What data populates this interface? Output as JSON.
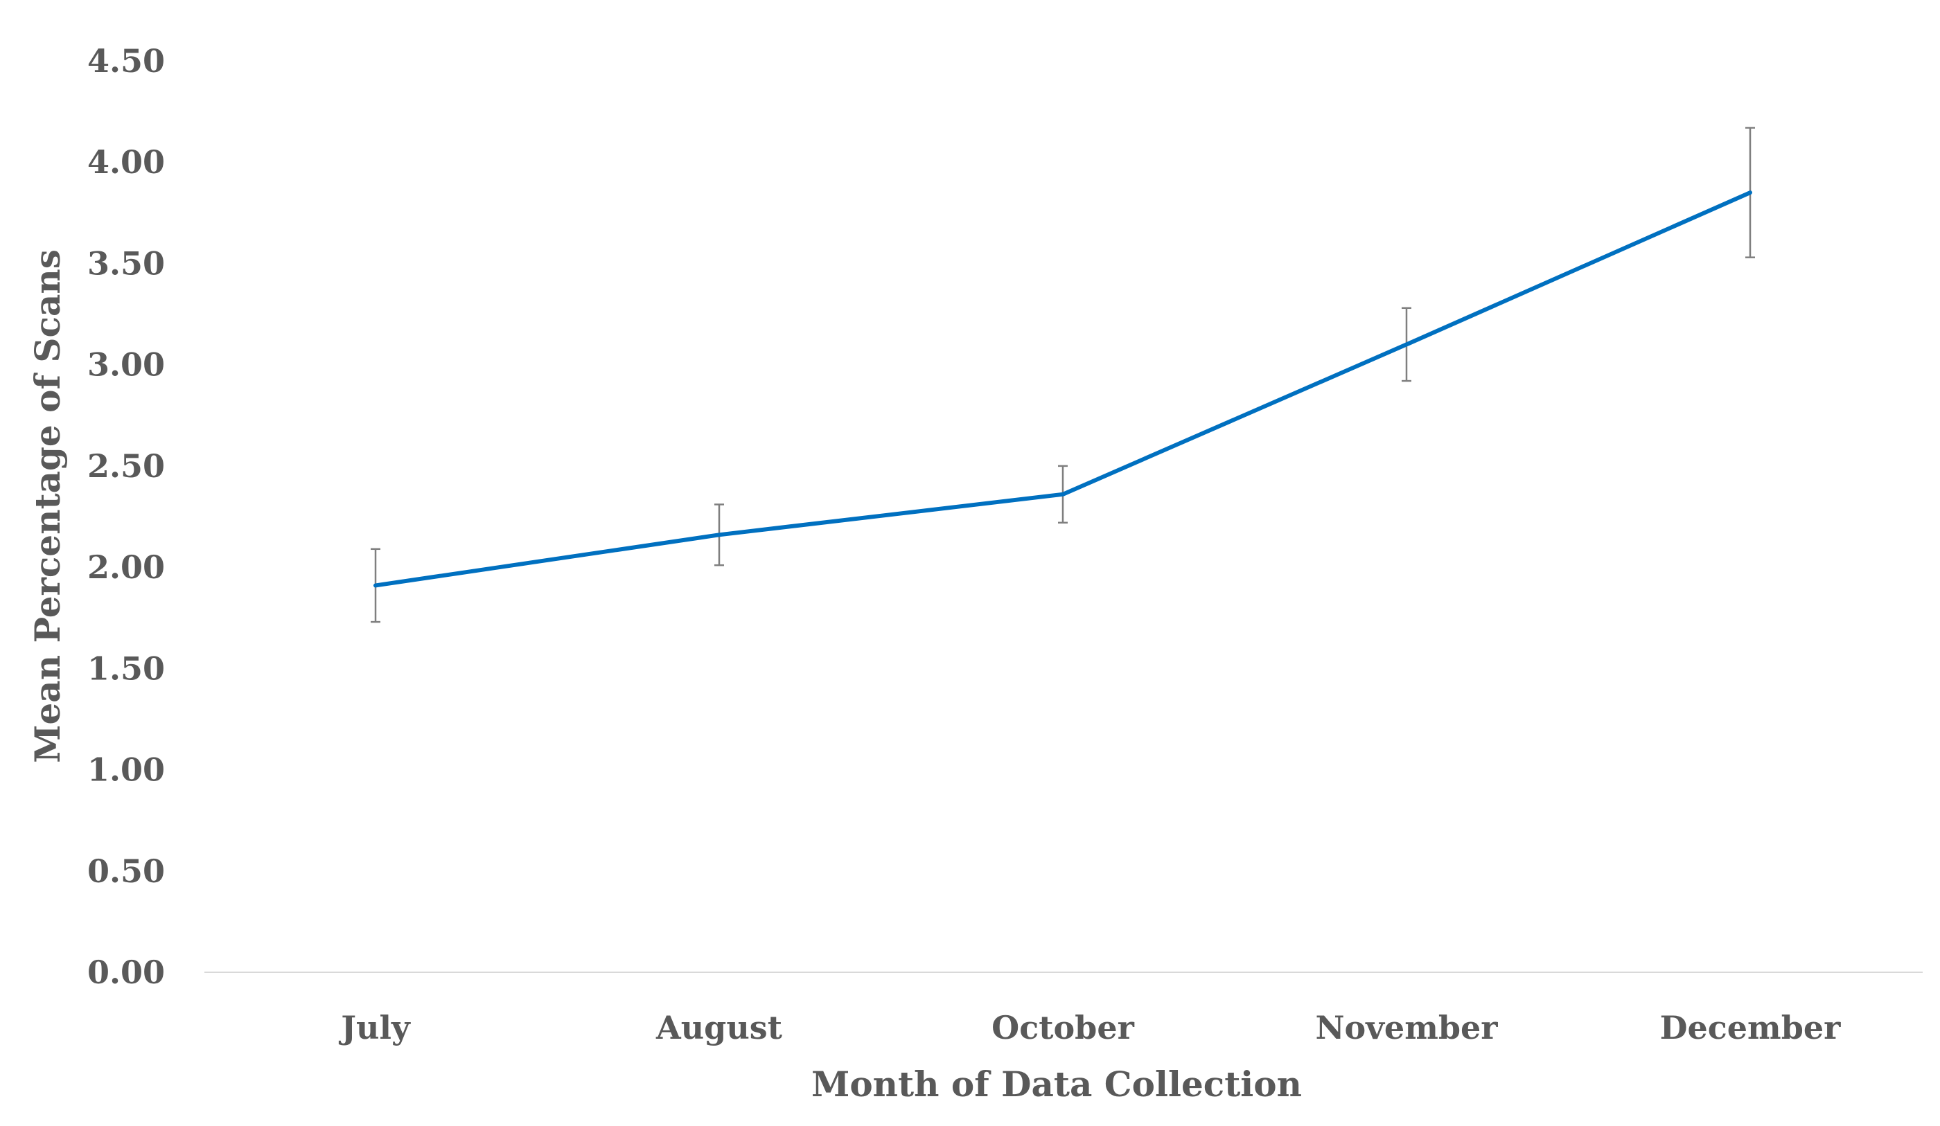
{
  "chart_data": {
    "type": "line",
    "title": "",
    "xlabel": "Month of Data Collection",
    "ylabel": "Mean Percentage of Scans",
    "categories": [
      "July",
      "August",
      "October",
      "November",
      "December"
    ],
    "series": [
      {
        "values": [
          1.91,
          2.16,
          2.36,
          3.1,
          3.85
        ],
        "error_low": [
          1.73,
          2.01,
          2.22,
          2.92,
          3.53
        ],
        "error_high": [
          2.09,
          2.31,
          2.5,
          3.28,
          4.17
        ]
      }
    ],
    "ylim": [
      0,
      4.5
    ],
    "y_ticks": [
      "0.00",
      "0.50",
      "1.00",
      "1.50",
      "2.00",
      "2.50",
      "3.00",
      "3.50",
      "4.00",
      "4.50"
    ],
    "grid": false,
    "legend": "none",
    "colors": {
      "line": "#0070C0",
      "error_bar": "#7F7F7F",
      "axis": "#D9D9D9",
      "text": "#595959"
    }
  }
}
